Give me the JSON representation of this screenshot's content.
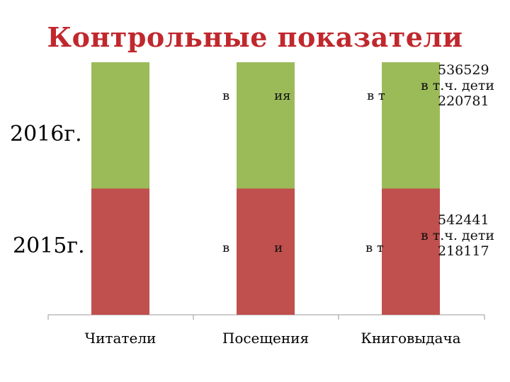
{
  "title": "Контрольные показатели",
  "row_labels": {
    "top": "2016г.",
    "bottom": "2015г."
  },
  "colors": {
    "year_2015": "#c0504d",
    "year_2016": "#9bbb59",
    "title": "#c0282d"
  },
  "chart_data": {
    "type": "bar",
    "stacked": true,
    "categories": [
      "Читатели",
      "Посещения",
      "Книговыдача"
    ],
    "series": [
      {
        "name": "2015г.",
        "values": [
          50,
          50,
          50
        ]
      },
      {
        "name": "2016г.",
        "values": [
          50,
          50,
          50
        ]
      }
    ],
    "ylim": [
      0,
      100
    ],
    "annotations": {
      "kn_2016": {
        "line1": "536529",
        "line2": "в т.ч. дети",
        "line3": "220781"
      },
      "kn_2015": {
        "line1": "542441",
        "line2": "в т.ч. дети",
        "line3": "218117"
      }
    },
    "fragments": {
      "pos_2016": "в           ия",
      "kn_2016": "в т",
      "pos_2015": "в           и",
      "kn_2015": "в т"
    }
  }
}
